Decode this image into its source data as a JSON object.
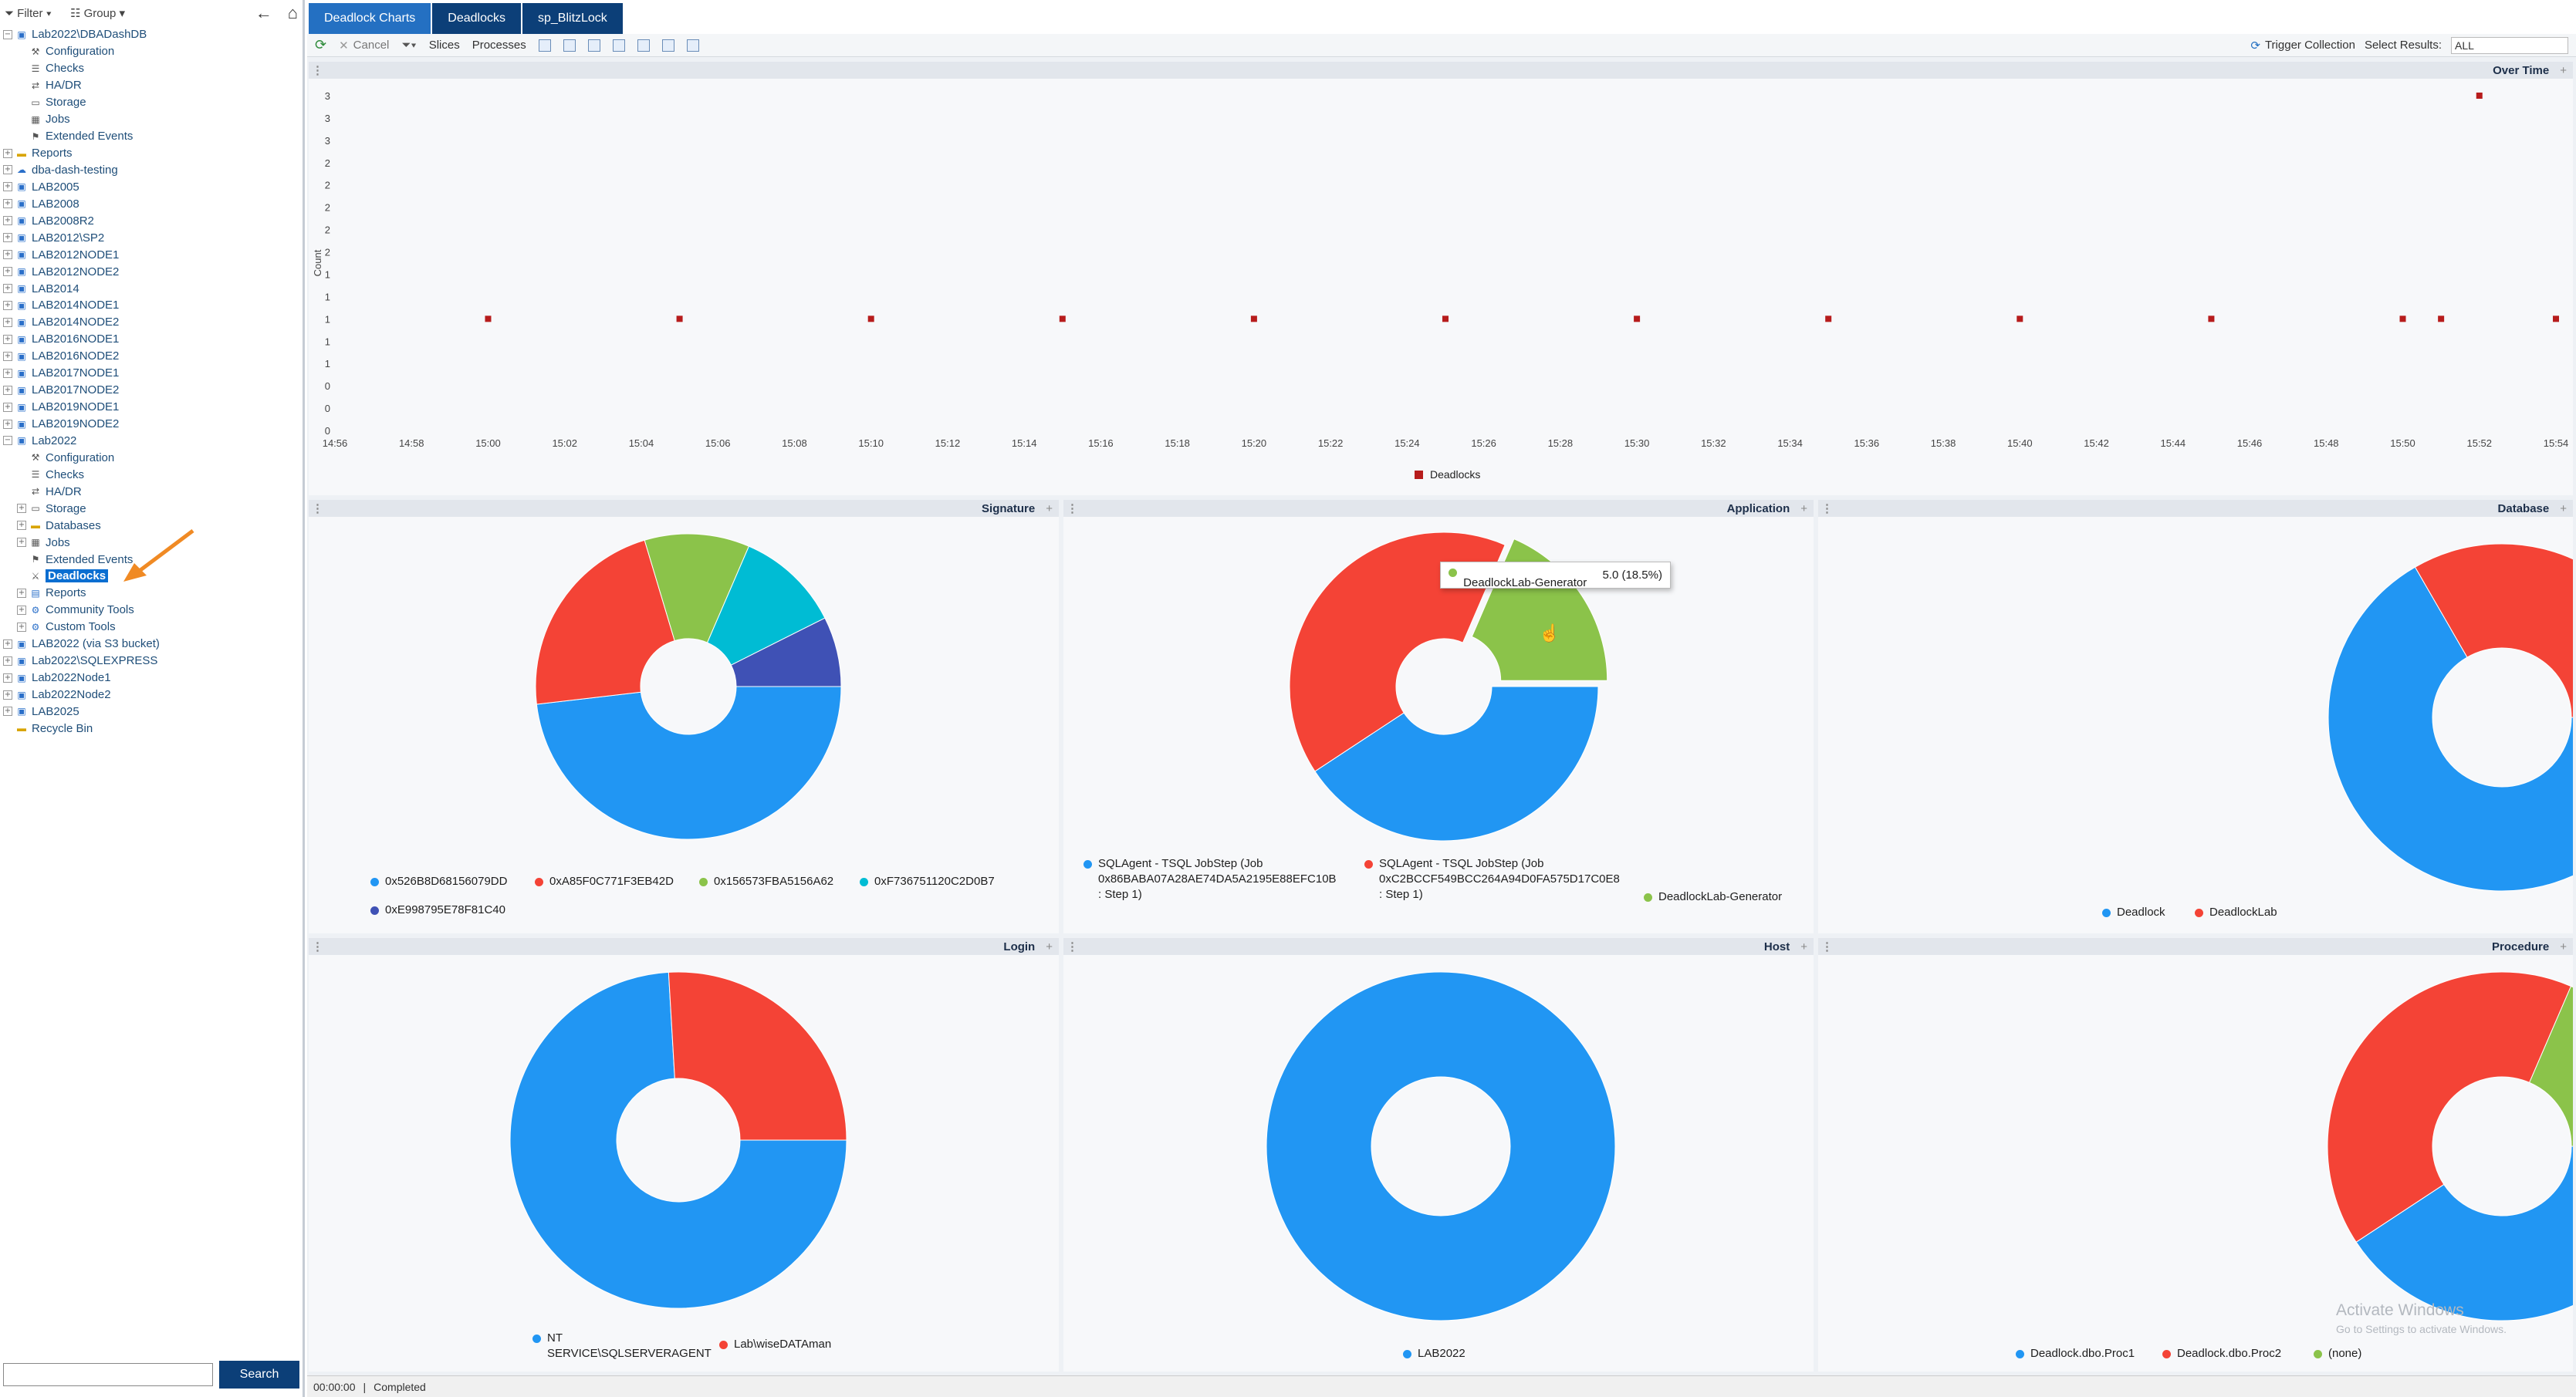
{
  "tree": {
    "filter_label": "Filter",
    "group_label": "Group",
    "items": [
      {
        "label": "Lab2022\\DBADashDB",
        "level": 0,
        "icon": "server",
        "expander": "-"
      },
      {
        "label": "Configuration",
        "level": 1,
        "icon": "wrench"
      },
      {
        "label": "Checks",
        "level": 1,
        "icon": "list"
      },
      {
        "label": "HA/DR",
        "level": 1,
        "icon": "hadr"
      },
      {
        "label": "Storage",
        "level": 1,
        "icon": "storage"
      },
      {
        "label": "Jobs",
        "level": 1,
        "icon": "jobs"
      },
      {
        "label": "Extended Events",
        "level": 1,
        "icon": "xevents"
      },
      {
        "label": "Reports",
        "level": 0,
        "icon": "folder",
        "expander": "+"
      },
      {
        "label": "dba-dash-testing",
        "level": 0,
        "icon": "cloud",
        "expander": "+"
      },
      {
        "label": "LAB2005",
        "level": 0,
        "icon": "server",
        "expander": "+"
      },
      {
        "label": "LAB2008",
        "level": 0,
        "icon": "server",
        "expander": "+"
      },
      {
        "label": "LAB2008R2",
        "level": 0,
        "icon": "server",
        "expander": "+"
      },
      {
        "label": "LAB2012\\SP2",
        "level": 0,
        "icon": "server",
        "expander": "+"
      },
      {
        "label": "LAB2012NODE1",
        "level": 0,
        "icon": "server",
        "expander": "+"
      },
      {
        "label": "LAB2012NODE2",
        "level": 0,
        "icon": "server",
        "expander": "+"
      },
      {
        "label": "LAB2014",
        "level": 0,
        "icon": "server",
        "expander": "+"
      },
      {
        "label": "LAB2014NODE1",
        "level": 0,
        "icon": "server",
        "expander": "+"
      },
      {
        "label": "LAB2014NODE2",
        "level": 0,
        "icon": "server",
        "expander": "+"
      },
      {
        "label": "LAB2016NODE1",
        "level": 0,
        "icon": "server",
        "expander": "+"
      },
      {
        "label": "LAB2016NODE2",
        "level": 0,
        "icon": "server",
        "expander": "+"
      },
      {
        "label": "LAB2017NODE1",
        "level": 0,
        "icon": "server",
        "expander": "+"
      },
      {
        "label": "LAB2017NODE2",
        "level": 0,
        "icon": "server",
        "expander": "+"
      },
      {
        "label": "LAB2019NODE1",
        "level": 0,
        "icon": "server",
        "expander": "+"
      },
      {
        "label": "LAB2019NODE2",
        "level": 0,
        "icon": "server",
        "expander": "+"
      },
      {
        "label": "Lab2022",
        "level": 0,
        "icon": "server",
        "expander": "-"
      },
      {
        "label": "Configuration",
        "level": 1,
        "icon": "wrench"
      },
      {
        "label": "Checks",
        "level": 1,
        "icon": "list"
      },
      {
        "label": "HA/DR",
        "level": 1,
        "icon": "hadr"
      },
      {
        "label": "Storage",
        "level": 1,
        "icon": "storage",
        "expander": "+"
      },
      {
        "label": "Databases",
        "level": 1,
        "icon": "folder",
        "expander": "+"
      },
      {
        "label": "Jobs",
        "level": 1,
        "icon": "jobs",
        "expander": "+"
      },
      {
        "label": "Extended Events",
        "level": 1,
        "icon": "xevents"
      },
      {
        "label": "Deadlocks",
        "level": 1,
        "icon": "deadlock",
        "selected": true
      },
      {
        "label": "Reports",
        "level": 1,
        "icon": "reports",
        "expander": "+"
      },
      {
        "label": "Community Tools",
        "level": 1,
        "icon": "tools",
        "expander": "+"
      },
      {
        "label": "Custom Tools",
        "level": 1,
        "icon": "tools",
        "expander": "+"
      },
      {
        "label": "LAB2022 (via S3 bucket)",
        "level": 0,
        "icon": "server",
        "expander": "+"
      },
      {
        "label": "Lab2022\\SQLEXPRESS",
        "level": 0,
        "icon": "server",
        "expander": "+"
      },
      {
        "label": "Lab2022Node1",
        "level": 0,
        "icon": "server",
        "expander": "+"
      },
      {
        "label": "Lab2022Node2",
        "level": 0,
        "icon": "server",
        "expander": "+"
      },
      {
        "label": "LAB2025",
        "level": 0,
        "icon": "server",
        "expander": "+"
      },
      {
        "label": "Recycle Bin",
        "level": 0,
        "icon": "folder"
      }
    ],
    "search_button": "Search",
    "search_value": ""
  },
  "tabs": [
    {
      "label": "Deadlock Charts",
      "active": true
    },
    {
      "label": "Deadlocks",
      "active": false
    },
    {
      "label": "sp_BlitzLock",
      "active": false
    }
  ],
  "toolbar": {
    "cancel": "Cancel",
    "slices": "Slices",
    "processes": "Processes",
    "trigger_collection": "Trigger Collection",
    "select_results_label": "Select Results:",
    "select_results_value": "ALL"
  },
  "colors": {
    "blue": "#2196F3",
    "red": "#F44336",
    "green": "#8BC34A",
    "cyan": "#00BCD4",
    "indigo": "#3F51B5",
    "marker": "#B71C1C"
  },
  "panels": {
    "over_time": "Over Time",
    "signature": "Signature",
    "application": "Application",
    "database": "Database",
    "login": "Login",
    "host": "Host",
    "procedure": "Procedure"
  },
  "chart_data": [
    {
      "id": "over_time",
      "type": "scatter",
      "title": "Over Time",
      "ylabel": "Count",
      "x_ticks": [
        "14:56",
        "14:58",
        "15:00",
        "15:02",
        "15:04",
        "15:06",
        "15:08",
        "15:10",
        "15:12",
        "15:14",
        "15:16",
        "15:18",
        "15:20",
        "15:22",
        "15:24",
        "15:26",
        "15:28",
        "15:30",
        "15:32",
        "15:34",
        "15:36",
        "15:38",
        "15:40",
        "15:42",
        "15:44",
        "15:46",
        "15:48",
        "15:50",
        "15:52",
        "15:54"
      ],
      "y_tick_labels": [
        "0",
        "0",
        "0",
        "1",
        "1",
        "1",
        "1",
        "1",
        "2",
        "2",
        "2",
        "2",
        "2",
        "3",
        "3",
        "3"
      ],
      "ylim": [
        0,
        3
      ],
      "series": [
        {
          "name": "Deadlocks",
          "color": "#B71C1C",
          "x": [
            "15:00",
            "15:05",
            "15:10",
            "15:15",
            "15:20",
            "15:25",
            "15:30",
            "15:35",
            "15:40",
            "15:45",
            "15:50",
            "15:51",
            "15:54",
            "15:52"
          ],
          "y": [
            1,
            1,
            1,
            1,
            1,
            1,
            1,
            1,
            1,
            1,
            1,
            1,
            1,
            3
          ]
        }
      ]
    },
    {
      "id": "signature",
      "type": "pie",
      "title": "Signature",
      "slices": [
        {
          "label": "0x526B8D68156079DD",
          "value": 13,
          "color": "#2196F3"
        },
        {
          "label": "0xA85F0C771F3EB42D",
          "value": 6,
          "color": "#F44336"
        },
        {
          "label": "0x156573FBA5156A62",
          "value": 3,
          "color": "#8BC34A"
        },
        {
          "label": "0xF736751120C2D0B7",
          "value": 3,
          "color": "#00BCD4"
        },
        {
          "label": "0xE998795E78F81C40",
          "value": 2,
          "color": "#3F51B5"
        }
      ]
    },
    {
      "id": "application",
      "type": "pie",
      "title": "Application",
      "slices": [
        {
          "label": "SQLAgent - TSQL JobStep (Job 0x86BABA07A28AE74DA5A2195E88EFC10B : Step 1)",
          "value": 11,
          "color": "#2196F3"
        },
        {
          "label": "SQLAgent - TSQL JobStep (Job 0xC2BCCF549BCC264A94D0FA575D17C0E8 : Step 1)",
          "value": 11,
          "color": "#F44336"
        },
        {
          "label": "DeadlockLab-Generator",
          "value": 5,
          "color": "#8BC34A"
        }
      ],
      "tooltip": {
        "label": "DeadlockLab-Generator",
        "value": "5.0 (18.5%)"
      }
    },
    {
      "id": "database",
      "type": "pie",
      "title": "Database",
      "slices": [
        {
          "label": "Deadlock",
          "value": 18,
          "color": "#2196F3"
        },
        {
          "label": "DeadlockLab",
          "value": 9,
          "color": "#F44336"
        }
      ]
    },
    {
      "id": "login",
      "type": "pie",
      "title": "Login",
      "slices": [
        {
          "label": "NT SERVICE\\SQLSERVERAGENT",
          "value": 20,
          "color": "#2196F3"
        },
        {
          "label": "Lab\\wiseDATAman",
          "value": 7,
          "color": "#F44336"
        }
      ]
    },
    {
      "id": "host",
      "type": "pie",
      "title": "Host",
      "slices": [
        {
          "label": "LAB2022",
          "value": 27,
          "color": "#2196F3"
        }
      ]
    },
    {
      "id": "procedure",
      "type": "pie",
      "title": "Procedure",
      "slices": [
        {
          "label": "Deadlock.dbo.Proc1",
          "value": 11,
          "color": "#2196F3"
        },
        {
          "label": "Deadlock.dbo.Proc2",
          "value": 11,
          "color": "#F44336"
        },
        {
          "label": "(none)",
          "value": 5,
          "color": "#8BC34A"
        }
      ]
    }
  ],
  "status": {
    "time": "00:00:00",
    "text": "Completed"
  },
  "watermark": {
    "line1": "Activate Windows",
    "line2": "Go to Settings to activate Windows."
  }
}
